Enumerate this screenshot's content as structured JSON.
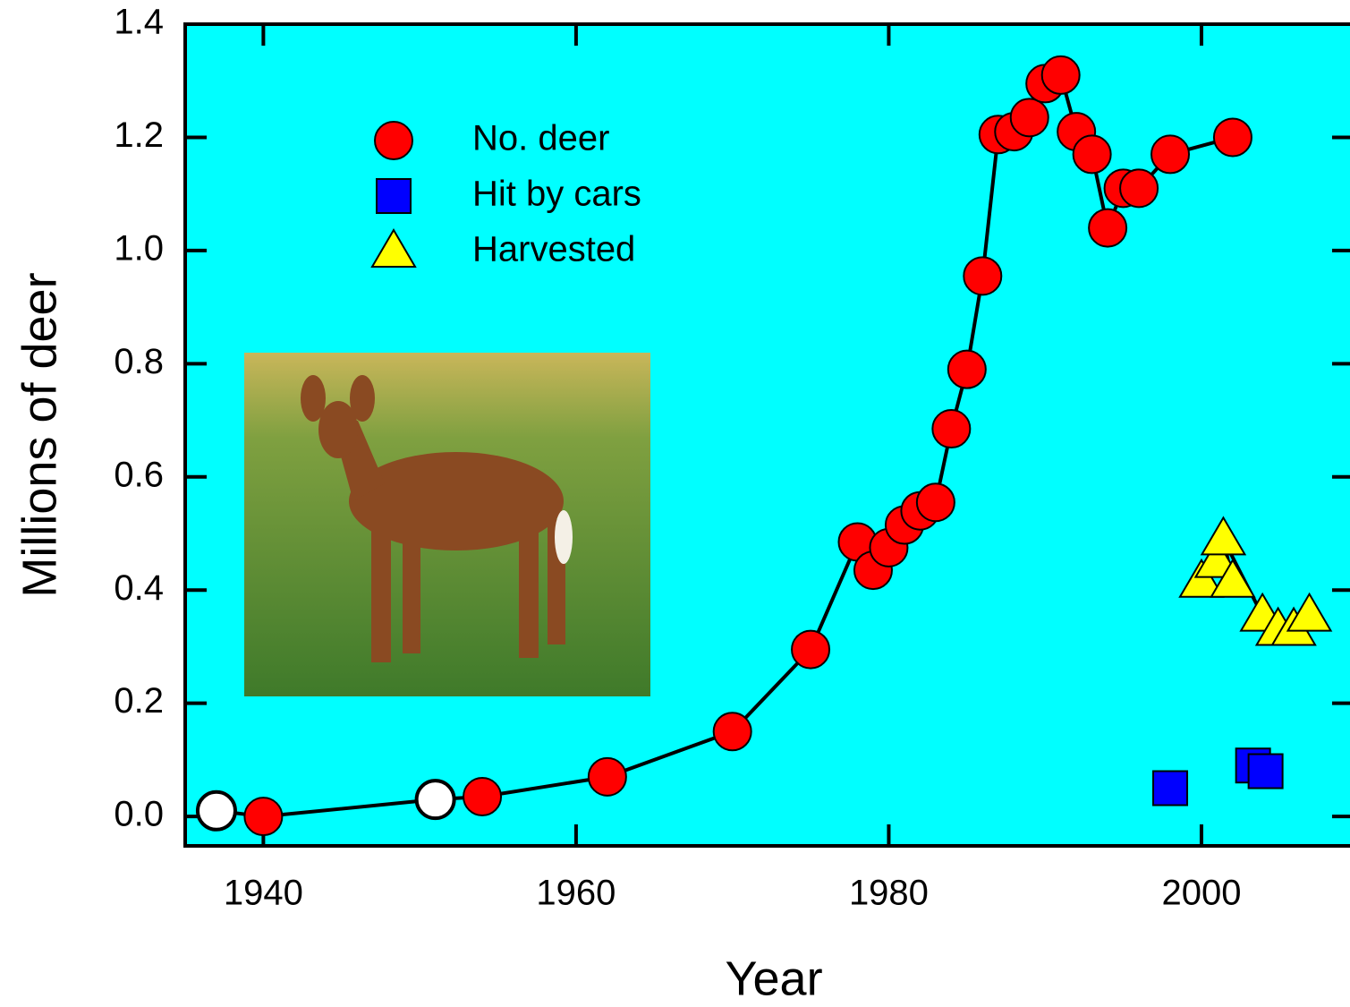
{
  "chart_data": {
    "type": "scatter",
    "x_label": "Year",
    "y_label": "Millions of deer",
    "xlim": [
      1935,
      2009.5
    ],
    "ylim": [
      -0.052,
      1.4
    ],
    "xticks": [
      1940,
      1960,
      1980,
      2000
    ],
    "yticks": [
      {
        "value": 0,
        "label": "0.0"
      },
      0.2,
      0.4,
      0.6,
      0.8,
      {
        "value": 1,
        "label": "1.0"
      },
      1.2,
      1.4
    ],
    "background": "#00ffff",
    "series": [
      {
        "name": "No. deer",
        "color": "#ff0000",
        "marker": "circle",
        "line": true,
        "x": [
          1937,
          1940,
          1951,
          1954,
          1962,
          1970,
          1975,
          1978,
          1979,
          1980,
          1981,
          1982,
          1983,
          1984,
          1985,
          1986,
          1987,
          1988,
          1989,
          1990,
          1991,
          1992,
          1993,
          1994,
          1995,
          1996,
          1998,
          2002
        ],
        "values": [
          0.01,
          0,
          0.03,
          0.035,
          0.07,
          0.15,
          0.295,
          0.485,
          0.435,
          0.475,
          0.515,
          0.54,
          0.555,
          0.685,
          0.79,
          0.955,
          1.205,
          1.21,
          1.235,
          1.295,
          1.31,
          1.21,
          1.17,
          1.04,
          1.11,
          1.11,
          1.17,
          1.2
        ],
        "point_colors": [
          "#ffffff",
          "#ff0000",
          "#ffffff",
          "#ff0000",
          "#ff0000",
          "#ff0000",
          "#ff0000",
          "#ff0000",
          "#ff0000",
          "#ff0000",
          "#ff0000",
          "#ff0000",
          "#ff0000",
          "#ff0000",
          "#ff0000",
          "#ff0000",
          "#ff0000",
          "#ff0000",
          "#ff0000",
          "#ff0000",
          "#ff0000",
          "#ff0000",
          "#ff0000",
          "#ff0000",
          "#ff0000",
          "#ff0000",
          "#ff0000",
          "#ff0000"
        ]
      },
      {
        "name": "Hit by cars",
        "color": "#0000ff",
        "marker": "square",
        "line": false,
        "x": [
          1998,
          2003.3,
          2004.1
        ],
        "values": [
          0.05,
          0.09,
          0.08
        ]
      },
      {
        "name": "Harvested",
        "color": "#ffff00",
        "marker": "triangle",
        "line": true,
        "x": [
          2000,
          2001,
          2002,
          2001.4,
          2003.9,
          2004.9,
          2005.9,
          2006.9
        ],
        "values": [
          0.415,
          0.45,
          0.415,
          0.49,
          0.355,
          0.33,
          0.33,
          0.355
        ]
      }
    ]
  }
}
